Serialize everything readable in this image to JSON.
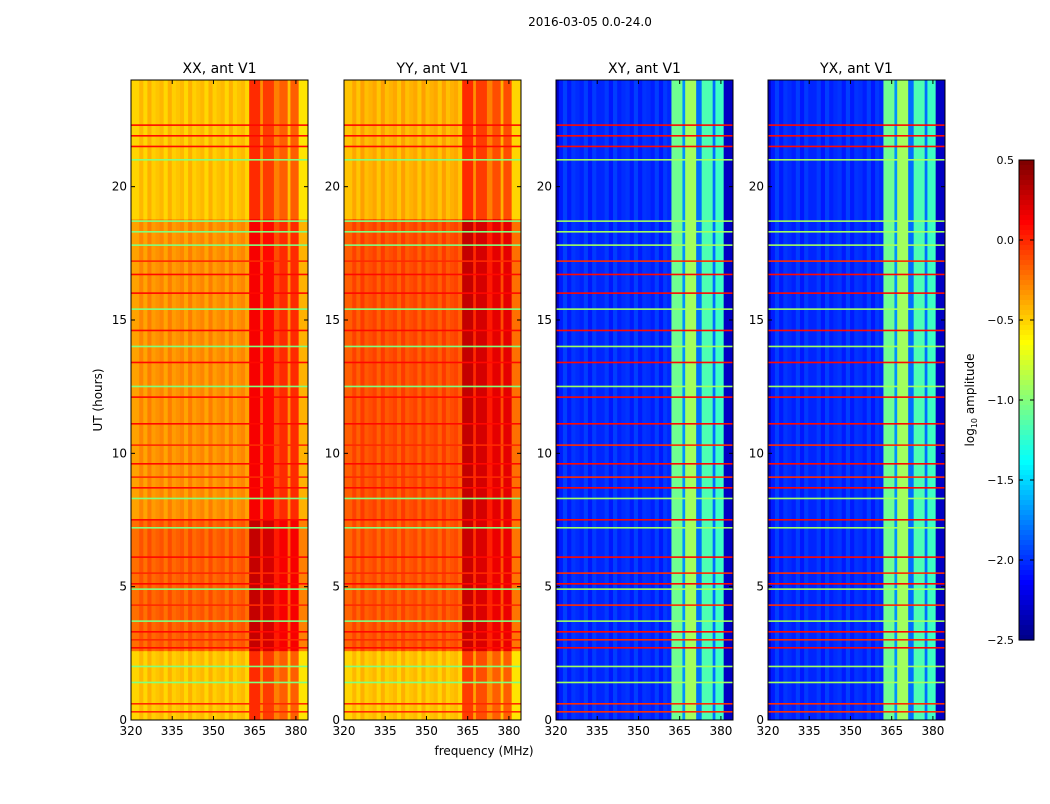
{
  "chart_data": {
    "type": "heatmap",
    "title": "2016-03-05 0.0-24.0",
    "xlabel": "frequency (MHz)",
    "ylabel": "UT (hours)",
    "xlim": [
      320,
      384.4
    ],
    "ylim": [
      0,
      24
    ],
    "xticks": [
      "320",
      "335",
      "350",
      "365",
      "380"
    ],
    "xtick_values": [
      320,
      335,
      350,
      365,
      380
    ],
    "yticks": [
      "0",
      "5",
      "10",
      "15",
      "20"
    ],
    "ytick_values": [
      0,
      5,
      10,
      15,
      20
    ],
    "colorbar": {
      "label_main": "log",
      "label_sub": "10",
      "label_rest": " amplitude",
      "range": [
        -2.5,
        0.5
      ],
      "ticks": [
        "0.5",
        "0.0",
        "−0.5",
        "−1.0",
        "−1.5",
        "−2.0",
        "−2.5"
      ],
      "tick_values": [
        0.5,
        0.0,
        -0.5,
        -1.0,
        -1.5,
        -2.0,
        -2.5
      ],
      "colormap": "jet"
    },
    "panels": [
      {
        "title": "XX, ant V1",
        "time_segments": [
          [
            0,
            2.6,
            -0.45
          ],
          [
            2.6,
            7.5,
            -0.15
          ],
          [
            7.5,
            18.8,
            -0.3
          ],
          [
            18.8,
            24,
            -0.45
          ]
        ],
        "band_segments": [
          [
            320,
            323,
            -0.05
          ],
          [
            323,
            363,
            0
          ],
          [
            363,
            367,
            0.45
          ],
          [
            367,
            368,
            0.15
          ],
          [
            368,
            372,
            0.4
          ],
          [
            372,
            374,
            0.2
          ],
          [
            374,
            377,
            0.3
          ],
          [
            377,
            378,
            0
          ],
          [
            378,
            381,
            0.3
          ],
          [
            381,
            384.4,
            -0.1
          ]
        ]
      },
      {
        "title": "YY, ant V1",
        "time_segments": [
          [
            0,
            2.6,
            -0.45
          ],
          [
            2.6,
            7.5,
            -0.12
          ],
          [
            7.5,
            18.8,
            -0.1
          ],
          [
            18.8,
            24,
            -0.4
          ]
        ],
        "band_segments": [
          [
            320,
            323,
            -0.05
          ],
          [
            323,
            363,
            0
          ],
          [
            363,
            367,
            0.4
          ],
          [
            367,
            368,
            0.1
          ],
          [
            368,
            372,
            0.35
          ],
          [
            372,
            374,
            0.15
          ],
          [
            374,
            377,
            0.3
          ],
          [
            377,
            378,
            0
          ],
          [
            378,
            381,
            0.3
          ],
          [
            381,
            384.4,
            -0.1
          ]
        ]
      },
      {
        "title": "XY, ant V1",
        "time_segments": [
          [
            0,
            24,
            -2.0
          ]
        ],
        "band_segments": [
          [
            320,
            321,
            -0.3
          ],
          [
            321,
            362,
            0
          ],
          [
            362,
            366,
            0.95
          ],
          [
            366,
            367,
            0.3
          ],
          [
            367,
            371,
            1.1
          ],
          [
            371,
            373,
            0.2
          ],
          [
            373,
            377,
            0.85
          ],
          [
            377,
            378,
            0.2
          ],
          [
            378,
            381,
            0.8
          ],
          [
            381,
            384.4,
            -0.3
          ]
        ]
      },
      {
        "title": "YX, ant V1",
        "time_segments": [
          [
            0,
            24,
            -2.0
          ]
        ],
        "band_segments": [
          [
            320,
            321,
            -0.3
          ],
          [
            321,
            362,
            0
          ],
          [
            362,
            366,
            0.95
          ],
          [
            366,
            367,
            0.3
          ],
          [
            367,
            371,
            1.1
          ],
          [
            371,
            373,
            0.2
          ],
          [
            373,
            377,
            0.85
          ],
          [
            377,
            378,
            0.2
          ],
          [
            378,
            381,
            0.8
          ],
          [
            381,
            384.4,
            -0.3
          ]
        ]
      }
    ],
    "rfi_lines": [
      {
        "hour": 0.3,
        "value": 0.0
      },
      {
        "hour": 0.6,
        "value": 0.0
      },
      {
        "hour": 1.4,
        "value": -1.0
      },
      {
        "hour": 2.0,
        "value": -1.0
      },
      {
        "hour": 2.7,
        "value": 0.1
      },
      {
        "hour": 3.0,
        "value": 0.0
      },
      {
        "hour": 3.3,
        "value": 0.1
      },
      {
        "hour": 3.7,
        "value": -1.0
      },
      {
        "hour": 4.3,
        "value": 0.0
      },
      {
        "hour": 4.9,
        "value": -1.0
      },
      {
        "hour": 5.1,
        "value": 0.1
      },
      {
        "hour": 5.5,
        "value": 0.0
      },
      {
        "hour": 6.1,
        "value": 0.1
      },
      {
        "hour": 7.2,
        "value": -1.0
      },
      {
        "hour": 7.5,
        "value": 0.1
      },
      {
        "hour": 8.3,
        "value": -1.0
      },
      {
        "hour": 8.7,
        "value": 0.1
      },
      {
        "hour": 9.1,
        "value": 0.0
      },
      {
        "hour": 9.6,
        "value": 0.1
      },
      {
        "hour": 10.3,
        "value": 0.0
      },
      {
        "hour": 11.1,
        "value": 0.1
      },
      {
        "hour": 12.1,
        "value": 0.1
      },
      {
        "hour": 12.5,
        "value": -1.0
      },
      {
        "hour": 13.4,
        "value": 0.1
      },
      {
        "hour": 14.0,
        "value": -1.0
      },
      {
        "hour": 14.6,
        "value": 0.1
      },
      {
        "hour": 15.4,
        "value": -1.0
      },
      {
        "hour": 16.0,
        "value": 0.1
      },
      {
        "hour": 16.7,
        "value": 0.1
      },
      {
        "hour": 17.2,
        "value": 0.0
      },
      {
        "hour": 17.8,
        "value": -1.0
      },
      {
        "hour": 18.3,
        "value": -1.0
      },
      {
        "hour": 18.7,
        "value": -1.0
      },
      {
        "hour": 21.0,
        "value": -1.0
      },
      {
        "hour": 21.5,
        "value": 0.1
      },
      {
        "hour": 21.9,
        "value": 0.1
      },
      {
        "hour": 22.3,
        "value": 0.1
      }
    ]
  }
}
